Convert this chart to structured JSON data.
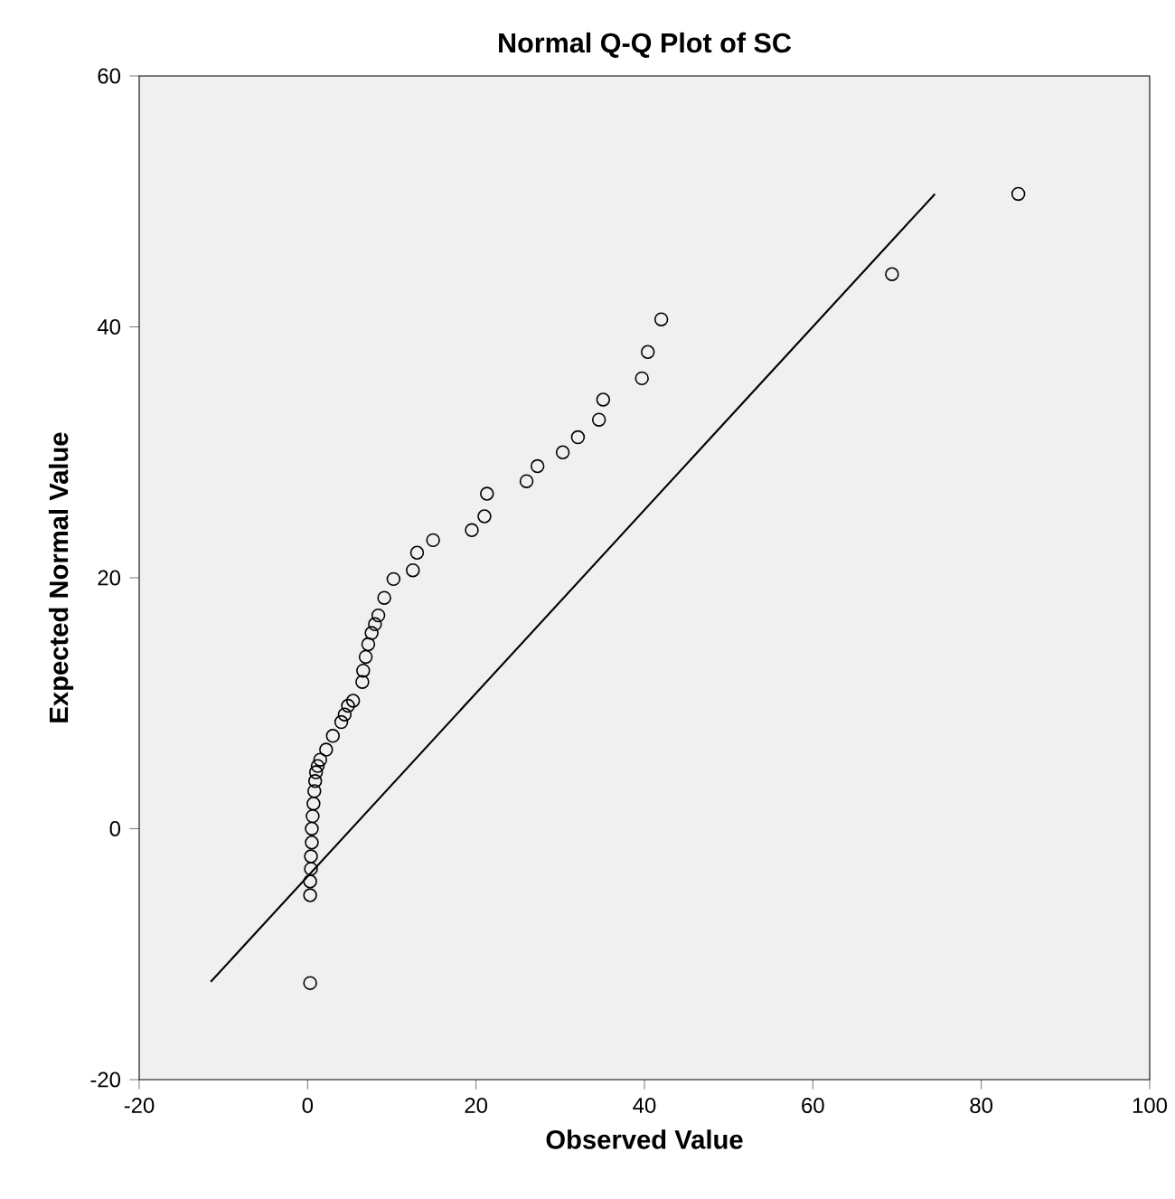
{
  "chart_data": {
    "type": "scatter",
    "title": "Normal Q-Q Plot of SC",
    "xlabel": "Observed Value",
    "ylabel": "Expected Normal Value",
    "xlim": [
      -20,
      100
    ],
    "ylim": [
      -20,
      60
    ],
    "xticks": [
      -20,
      0,
      20,
      40,
      60,
      80,
      100
    ],
    "yticks": [
      -20,
      0,
      20,
      40,
      60
    ],
    "grid": false,
    "series": [
      {
        "marker": "circle",
        "color": "#000000",
        "x": [
          0.3,
          0.3,
          0.3,
          0.4,
          0.4,
          0.5,
          0.5,
          0.6,
          0.7,
          0.8,
          0.9,
          1.0,
          1.2,
          1.5,
          2.2,
          3.0,
          4.0,
          4.4,
          4.8,
          5.4,
          6.5,
          6.6,
          6.9,
          7.2,
          7.6,
          8.0,
          8.4,
          9.1,
          10.2,
          12.5,
          13.0,
          14.9,
          19.5,
          21.0,
          21.3,
          26.0,
          27.3,
          30.3,
          32.1,
          34.6,
          35.1,
          39.7,
          40.4,
          42.0,
          69.4,
          84.4
        ],
        "values": [
          -12.3,
          -5.3,
          -4.2,
          -3.2,
          -2.2,
          -1.1,
          0.0,
          1.0,
          2.0,
          3.0,
          3.8,
          4.5,
          5.0,
          5.5,
          6.3,
          7.4,
          8.5,
          9.1,
          9.8,
          10.2,
          11.7,
          12.6,
          13.7,
          14.7,
          15.6,
          16.3,
          17.0,
          18.4,
          19.9,
          20.6,
          22.0,
          23.0,
          23.8,
          24.9,
          26.7,
          27.7,
          28.9,
          30.0,
          31.2,
          32.6,
          34.2,
          35.9,
          38.0,
          40.6,
          44.2,
          50.6
        ]
      },
      {
        "type": "line",
        "marker": "none",
        "color": "#000000",
        "x": [
          -11.5,
          74.5
        ],
        "values": [
          -12.2,
          50.6
        ]
      }
    ]
  }
}
